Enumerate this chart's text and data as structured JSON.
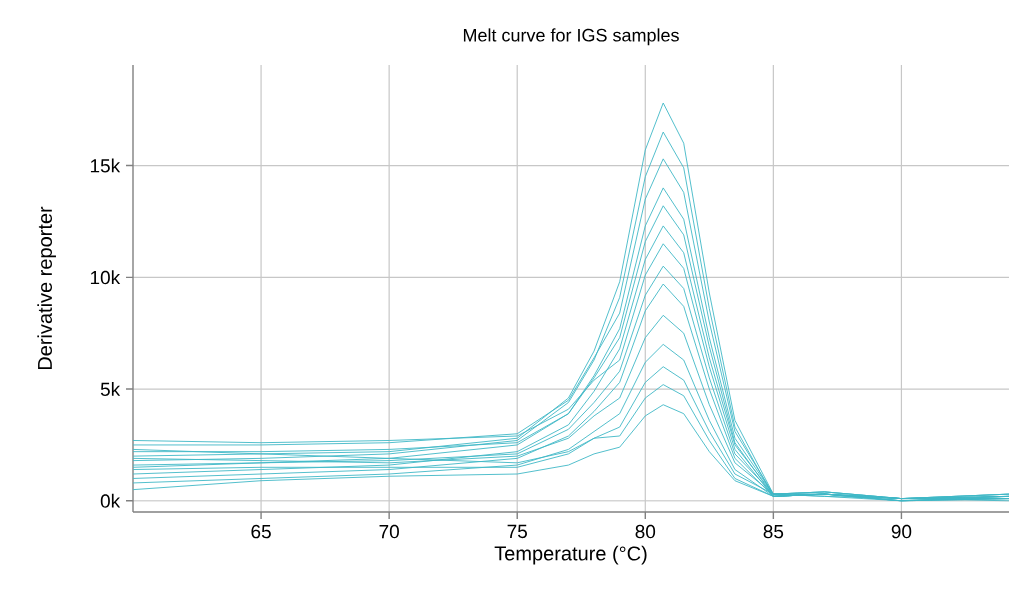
{
  "chart_data": {
    "type": "line",
    "title": "Melt curve for IGS samples",
    "xlabel": "Temperature (°C)",
    "ylabel": "Derivative reporter",
    "x": [
      60,
      65,
      70,
      75,
      77,
      78,
      79,
      80,
      80.7,
      81.5,
      82.5,
      83.5,
      85,
      87,
      90,
      94.2
    ],
    "series": [
      {
        "color": "#3fb8c6",
        "values": [
          2000,
          2100,
          2200,
          2800,
          4600,
          6700,
          9800,
          15700,
          17800,
          16000,
          9300,
          3600,
          300,
          400,
          100,
          200
        ]
      },
      {
        "color": "#3fb8c6",
        "values": [
          1800,
          1900,
          2100,
          2700,
          4400,
          6300,
          9100,
          14500,
          16500,
          14900,
          8600,
          3300,
          200,
          300,
          0,
          100
        ]
      },
      {
        "color": "#3fb8c6",
        "values": [
          2500,
          2500,
          2600,
          3000,
          4500,
          6400,
          8400,
          13500,
          15300,
          13800,
          8000,
          3100,
          300,
          400,
          100,
          300
        ]
      },
      {
        "color": "#3fb8c6",
        "values": [
          1500,
          1700,
          1900,
          2500,
          3900,
          5600,
          7700,
          12300,
          14000,
          12600,
          7300,
          2800,
          300,
          300,
          100,
          200
        ]
      },
      {
        "color": "#3fb8c6",
        "values": [
          2200,
          2200,
          2300,
          2600,
          3900,
          5500,
          7300,
          11600,
          13200,
          11900,
          6900,
          2600,
          200,
          300,
          0,
          100
        ]
      },
      {
        "color": "#3fb8c6",
        "values": [
          1200,
          1400,
          1600,
          2200,
          3400,
          4900,
          6800,
          10800,
          12300,
          11100,
          6400,
          2500,
          300,
          400,
          100,
          0
        ]
      },
      {
        "color": "#3fb8c6",
        "values": [
          2700,
          2600,
          2700,
          2900,
          4100,
          5400,
          6300,
          10100,
          11500,
          10400,
          6000,
          2300,
          200,
          300,
          100,
          200
        ]
      },
      {
        "color": "#3fb8c6",
        "values": [
          1600,
          1700,
          1800,
          2100,
          3200,
          4400,
          5800,
          9200,
          10500,
          9500,
          5500,
          2100,
          300,
          200,
          0,
          100
        ]
      },
      {
        "color": "#3fb8c6",
        "values": [
          1000,
          1200,
          1400,
          1900,
          2900,
          4000,
          5300,
          8500,
          9700,
          8700,
          5000,
          1900,
          200,
          300,
          100,
          300
        ]
      },
      {
        "color": "#3fb8c6",
        "values": [
          1900,
          1800,
          1700,
          2000,
          2800,
          3800,
          4600,
          7300,
          8300,
          7500,
          4300,
          1700,
          300,
          300,
          100,
          100
        ]
      },
      {
        "color": "#3fb8c6",
        "values": [
          800,
          1000,
          1200,
          1600,
          2300,
          3100,
          3900,
          6200,
          7000,
          6300,
          3600,
          1400,
          200,
          300,
          0,
          200
        ]
      },
      {
        "color": "#3fb8c6",
        "values": [
          1400,
          1500,
          1500,
          1500,
          2100,
          2800,
          3300,
          5300,
          6000,
          5400,
          3100,
          1200,
          300,
          200,
          100,
          100
        ]
      },
      {
        "color": "#3fb8c6",
        "values": [
          2300,
          2100,
          1900,
          1700,
          2200,
          2800,
          2900,
          4600,
          5200,
          4700,
          2700,
          1000,
          200,
          300,
          0,
          200
        ]
      },
      {
        "color": "#3fb8c6",
        "values": [
          500,
          900,
          1100,
          1200,
          1600,
          2100,
          2400,
          3800,
          4300,
          3900,
          2200,
          900,
          200,
          300,
          100,
          300
        ]
      }
    ],
    "xlim": [
      60,
      94.2
    ],
    "xticks": [
      65,
      70,
      75,
      80,
      85,
      90
    ],
    "ylim": [
      -500,
      19500
    ],
    "yticks": [
      {
        "value": 0,
        "label": "0k"
      },
      {
        "value": 5000,
        "label": "5k"
      },
      {
        "value": 10000,
        "label": "10k"
      },
      {
        "value": 15000,
        "label": "15k"
      }
    ],
    "grid": true,
    "marker": "none",
    "line_style": "solid"
  }
}
